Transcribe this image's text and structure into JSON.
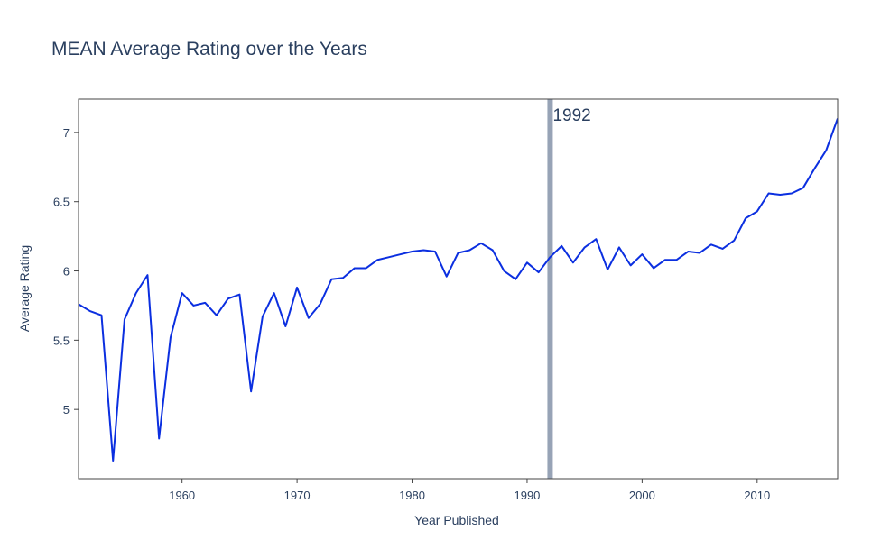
{
  "chart_data": {
    "type": "line",
    "title": "MEAN Average Rating over the Years",
    "xlabel": "Year Published",
    "ylabel": "Average Rating",
    "xlim": [
      1951,
      2017
    ],
    "ylim": [
      4.5,
      7.24
    ],
    "x_ticks": [
      1960,
      1970,
      1980,
      1990,
      2000,
      2010
    ],
    "y_ticks": [
      5,
      5.5,
      6,
      6.5,
      7
    ],
    "grid": false,
    "line_color": "#0b2fe0",
    "vline": {
      "x": 1992,
      "label": "1992",
      "color": "#97a3b6"
    },
    "series": [
      {
        "x": [
          1951,
          1952,
          1953,
          1954,
          1955,
          1956,
          1957,
          1958,
          1959,
          1960,
          1961,
          1962,
          1963,
          1964,
          1965,
          1966,
          1967,
          1968,
          1969,
          1970,
          1971,
          1972,
          1973,
          1974,
          1975,
          1976,
          1977,
          1978,
          1979,
          1980,
          1981,
          1982,
          1983,
          1984,
          1985,
          1986,
          1987,
          1988,
          1989,
          1990,
          1991,
          1992,
          1993,
          1994,
          1995,
          1996,
          1997,
          1998,
          1999,
          2000,
          2001,
          2002,
          2003,
          2004,
          2005,
          2006,
          2007,
          2008,
          2009,
          2010,
          2011,
          2012,
          2013,
          2014,
          2015,
          2016,
          2017
        ],
        "values": [
          5.76,
          5.71,
          5.68,
          4.63,
          5.65,
          5.84,
          5.97,
          4.79,
          5.52,
          5.84,
          5.75,
          5.77,
          5.68,
          5.8,
          5.83,
          5.13,
          5.67,
          5.84,
          5.6,
          5.88,
          5.66,
          5.76,
          5.94,
          5.95,
          6.02,
          6.02,
          6.08,
          6.1,
          6.12,
          6.14,
          6.15,
          6.14,
          5.96,
          6.13,
          6.15,
          6.2,
          6.15,
          6.0,
          5.94,
          6.06,
          5.99,
          6.1,
          6.18,
          6.06,
          6.17,
          6.23,
          6.01,
          6.17,
          6.04,
          6.12,
          6.02,
          6.08,
          6.08,
          6.14,
          6.13,
          6.19,
          6.16,
          6.22,
          6.38,
          6.43,
          6.56,
          6.55,
          6.56,
          6.6,
          6.74,
          6.87,
          7.1
        ]
      }
    ]
  }
}
